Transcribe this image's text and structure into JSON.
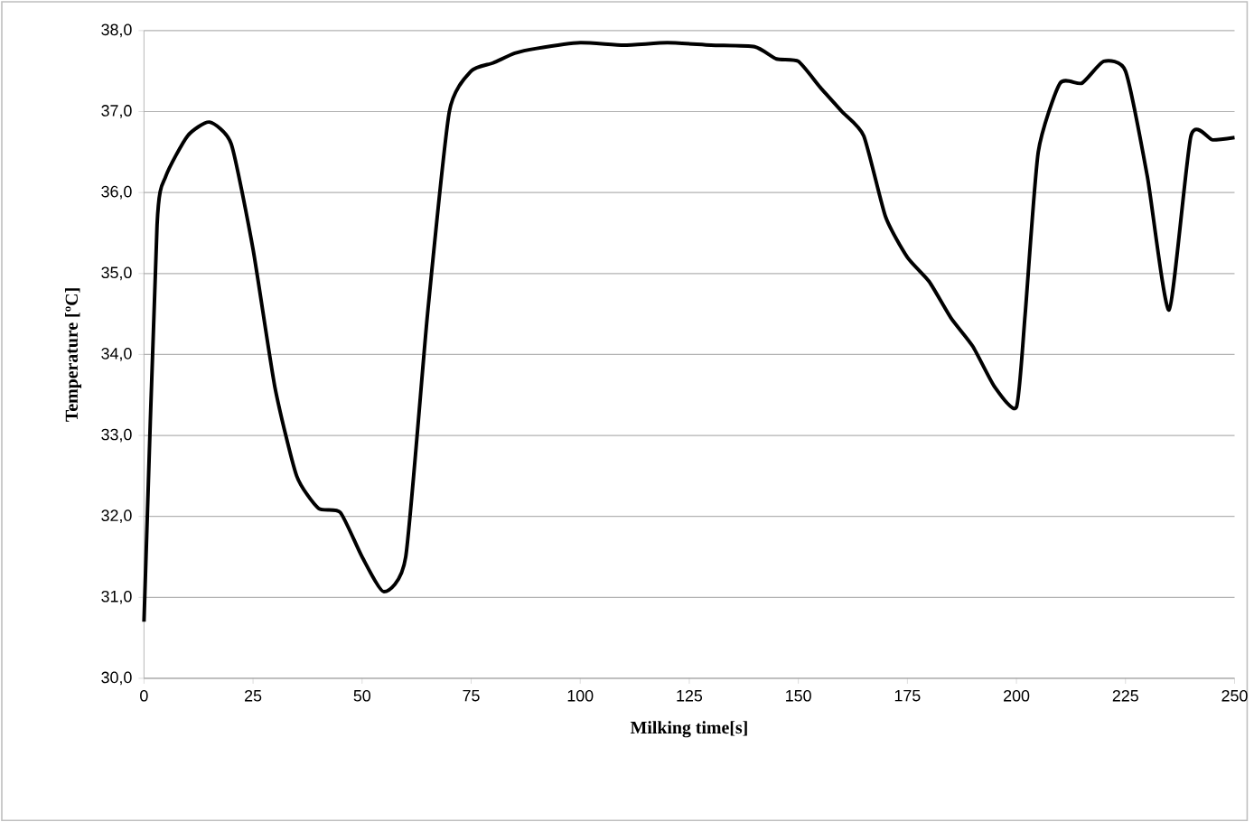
{
  "chart_data": {
    "type": "line",
    "xlabel": "Milking time[s]",
    "ylabel": "Temperature [ºC]",
    "x": [
      0,
      3,
      5,
      10,
      15,
      20,
      25,
      30,
      35,
      40,
      45,
      50,
      55,
      60,
      65,
      70,
      75,
      80,
      85,
      90,
      100,
      110,
      120,
      130,
      140,
      145,
      150,
      155,
      160,
      165,
      170,
      175,
      180,
      185,
      190,
      195,
      200,
      202,
      205,
      210,
      215,
      220,
      225,
      230,
      235,
      240,
      245,
      250
    ],
    "series": [
      {
        "color": "#000000",
        "values": [
          30.7,
          35.6,
          36.2,
          36.7,
          36.87,
          36.6,
          35.3,
          33.6,
          32.5,
          32.1,
          32.05,
          31.5,
          31.07,
          31.5,
          34.5,
          37.0,
          37.5,
          37.6,
          37.72,
          37.78,
          37.85,
          37.82,
          37.85,
          37.82,
          37.8,
          37.65,
          37.62,
          37.3,
          37.0,
          36.7,
          35.7,
          35.2,
          34.9,
          34.45,
          34.1,
          33.6,
          33.35,
          34.5,
          36.5,
          37.35,
          37.35,
          37.62,
          37.5,
          36.2,
          34.55,
          36.7,
          36.65,
          36.68
        ]
      }
    ],
    "xlim": [
      0,
      250
    ],
    "ylim": [
      30,
      38
    ],
    "xticks": [
      0,
      25,
      50,
      75,
      100,
      125,
      150,
      175,
      200,
      225,
      250
    ],
    "yticks": [
      {
        "value": 30,
        "label": "30,0"
      },
      {
        "value": 31,
        "label": "31,0"
      },
      {
        "value": 32,
        "label": "32,0"
      },
      {
        "value": 33,
        "label": "33,0"
      },
      {
        "value": 34,
        "label": "34,0"
      },
      {
        "value": 35,
        "label": "35,0"
      },
      {
        "value": 36,
        "label": "36,0"
      },
      {
        "value": 37,
        "label": "37,0"
      },
      {
        "value": 38,
        "label": "38,0"
      }
    ],
    "grid": "y",
    "marker": "none",
    "line_style": "solid"
  }
}
